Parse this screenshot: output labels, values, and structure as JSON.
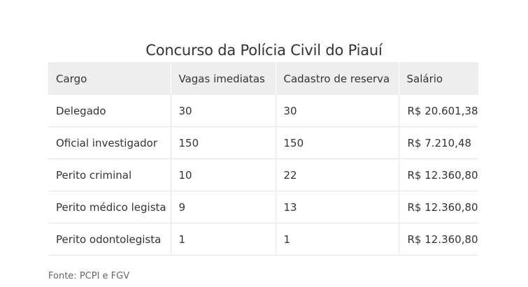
{
  "title": "Concurso da Polícia Civil do Piauí",
  "table": {
    "headers": [
      "Cargo",
      "Vagas imediatas",
      "Cadastro de reserva",
      "Salário"
    ],
    "rows": [
      [
        "Delegado",
        "30",
        "30",
        "R$ 20.601,38"
      ],
      [
        "Oficial investigador",
        "150",
        "150",
        "R$ 7.210,48"
      ],
      [
        "Perito criminal",
        "10",
        "22",
        "R$ 12.360,80"
      ],
      [
        "Perito médico legista",
        "9",
        "13",
        "R$ 12.360,80"
      ],
      [
        "Perito odontolegista",
        "1",
        "1",
        "R$ 12.360,80"
      ]
    ]
  },
  "source": "Fonte: PCPI e FGV"
}
